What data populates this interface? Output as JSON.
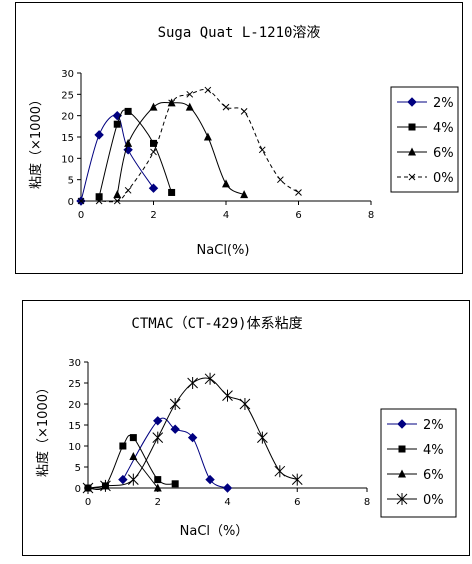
{
  "chart_data": [
    {
      "type": "line",
      "title": "Suga Quat L-1210溶液",
      "xlabel": "NaCl(%)",
      "ylabel": "粘度（×1000）",
      "xlim": [
        0,
        8
      ],
      "ylim": [
        0,
        30
      ],
      "xticks": [
        "0",
        "2",
        "4",
        "6",
        "8"
      ],
      "yticks": [
        "0",
        "5",
        "10",
        "15",
        "20",
        "25",
        "30"
      ],
      "legend_position": "right",
      "grid": false,
      "series": [
        {
          "name": "2%",
          "marker": "diamond",
          "line": "solid",
          "x": [
            0,
            0.5,
            1,
            1.3,
            2
          ],
          "y": [
            0,
            15.5,
            20,
            12,
            3
          ]
        },
        {
          "name": "4%",
          "marker": "square",
          "line": "solid",
          "x": [
            0.5,
            1,
            1.3,
            2,
            2.5
          ],
          "y": [
            1,
            18,
            21,
            13.5,
            2
          ]
        },
        {
          "name": "6%",
          "marker": "triangle",
          "line": "solid",
          "x": [
            1,
            1.3,
            2,
            2.5,
            3,
            3.5,
            4,
            4.5
          ],
          "y": [
            1.5,
            13.5,
            22,
            23,
            22,
            15,
            4,
            1.5
          ]
        },
        {
          "name": "0%",
          "marker": "x",
          "line": "dashed",
          "x": [
            0,
            0.5,
            1,
            1.3,
            2,
            2.5,
            3,
            3.5,
            4,
            4.5,
            5,
            5.5,
            6
          ],
          "y": [
            0,
            0,
            0,
            2.5,
            11.5,
            23,
            25,
            26,
            22,
            21,
            12,
            5,
            2
          ]
        }
      ]
    },
    {
      "type": "line",
      "title": "CTMAC（CT-429)体系粘度",
      "xlabel": "NaCl（%）",
      "ylabel": "粘度（×1000）",
      "xlim": [
        0,
        8
      ],
      "ylim": [
        0,
        30
      ],
      "xticks": [
        "0",
        "2",
        "4",
        "6",
        "8"
      ],
      "yticks": [
        "0",
        "5",
        "10",
        "15",
        "20",
        "25",
        "30"
      ],
      "legend_position": "right",
      "grid": false,
      "series": [
        {
          "name": "2%",
          "marker": "diamond",
          "line": "solid",
          "x": [
            1,
            2,
            2.5,
            3,
            3.5,
            4
          ],
          "y": [
            2,
            16,
            14,
            12,
            2,
            0
          ]
        },
        {
          "name": "4%",
          "marker": "square",
          "line": "solid",
          "x": [
            0,
            0.5,
            1,
            1.3,
            2,
            2.5
          ],
          "y": [
            0,
            0.5,
            10,
            12,
            2,
            1
          ]
        },
        {
          "name": "6%",
          "marker": "triangle",
          "line": "solid",
          "x": [
            1.3,
            2
          ],
          "y": [
            7.5,
            0
          ]
        },
        {
          "name": "0%",
          "marker": "asterisk",
          "line": "solid",
          "x": [
            0,
            0.5,
            1.3,
            2,
            2.5,
            3,
            3.5,
            4,
            4.5,
            5,
            5.5,
            6
          ],
          "y": [
            0,
            0.5,
            2,
            12,
            20,
            25,
            26,
            22,
            20,
            12,
            4,
            2
          ]
        }
      ]
    }
  ]
}
